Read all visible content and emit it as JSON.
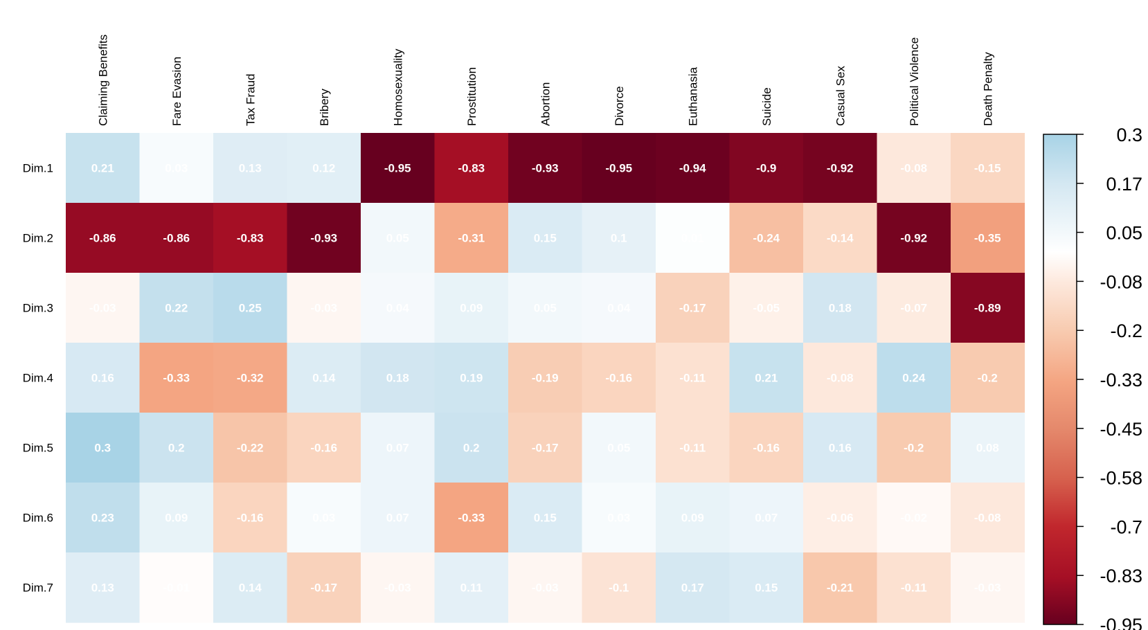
{
  "chart_data": {
    "type": "heatmap",
    "title": "",
    "xlabel": "",
    "ylabel": "",
    "columns": [
      "Claiming Benefits",
      "Fare Evasion",
      "Tax Fraud",
      "Bribery",
      "Homosexuality",
      "Prostitution",
      "Abortion",
      "Divorce",
      "Euthanasia",
      "Suicide",
      "Casual Sex",
      "Political Violence",
      "Death Penalty"
    ],
    "rows": [
      "Dim.1",
      "Dim.2",
      "Dim.3",
      "Dim.4",
      "Dim.5",
      "Dim.6",
      "Dim.7"
    ],
    "values": [
      [
        0.21,
        0.03,
        0.13,
        0.12,
        -0.95,
        -0.83,
        -0.93,
        -0.95,
        -0.94,
        -0.9,
        -0.92,
        -0.08,
        -0.15
      ],
      [
        -0.86,
        -0.86,
        -0.83,
        -0.93,
        0.05,
        -0.31,
        0.15,
        0.1,
        0.01,
        -0.24,
        -0.14,
        -0.92,
        -0.35
      ],
      [
        -0.03,
        0.22,
        0.25,
        -0.03,
        0.04,
        0.09,
        0.05,
        0.04,
        -0.17,
        -0.05,
        0.18,
        -0.07,
        -0.89
      ],
      [
        0.16,
        -0.33,
        -0.32,
        0.14,
        0.18,
        0.19,
        -0.19,
        -0.16,
        -0.11,
        0.21,
        -0.08,
        0.24,
        -0.2
      ],
      [
        0.3,
        0.2,
        -0.22,
        -0.16,
        0.07,
        0.2,
        -0.17,
        0.05,
        -0.11,
        -0.16,
        0.16,
        -0.2,
        0.08
      ],
      [
        0.23,
        0.09,
        -0.16,
        0.03,
        0.07,
        -0.33,
        0.15,
        0.03,
        0.09,
        0.07,
        -0.06,
        -0.02,
        -0.08
      ],
      [
        0.13,
        -0.01,
        0.14,
        -0.17,
        -0.03,
        0.11,
        -0.03,
        -0.1,
        0.17,
        0.15,
        -0.21,
        -0.11,
        -0.03
      ]
    ],
    "color_scale": {
      "min": -0.95,
      "max": 0.3,
      "ticks": [
        "0.3",
        "0.17",
        "0.05",
        "-0.08",
        "-0.2",
        "-0.33",
        "-0.45",
        "-0.58",
        "-0.7",
        "-0.83",
        "-0.95"
      ],
      "stops": [
        {
          "value": -0.95,
          "color": "#67001f"
        },
        {
          "value": -0.83,
          "color": "#a50f25"
        },
        {
          "value": -0.7,
          "color": "#c1272d"
        },
        {
          "value": -0.58,
          "color": "#d6604d"
        },
        {
          "value": -0.45,
          "color": "#e5896c"
        },
        {
          "value": -0.33,
          "color": "#f4a582"
        },
        {
          "value": -0.2,
          "color": "#f8cbb0"
        },
        {
          "value": -0.08,
          "color": "#fde8dc"
        },
        {
          "value": 0.0,
          "color": "#ffffff"
        },
        {
          "value": 0.05,
          "color": "#f2f8fb"
        },
        {
          "value": 0.17,
          "color": "#d5e8f2"
        },
        {
          "value": 0.3,
          "color": "#a8d3e6"
        }
      ]
    },
    "label_color": "#ffffff",
    "legend_position": "right",
    "grid": false
  }
}
